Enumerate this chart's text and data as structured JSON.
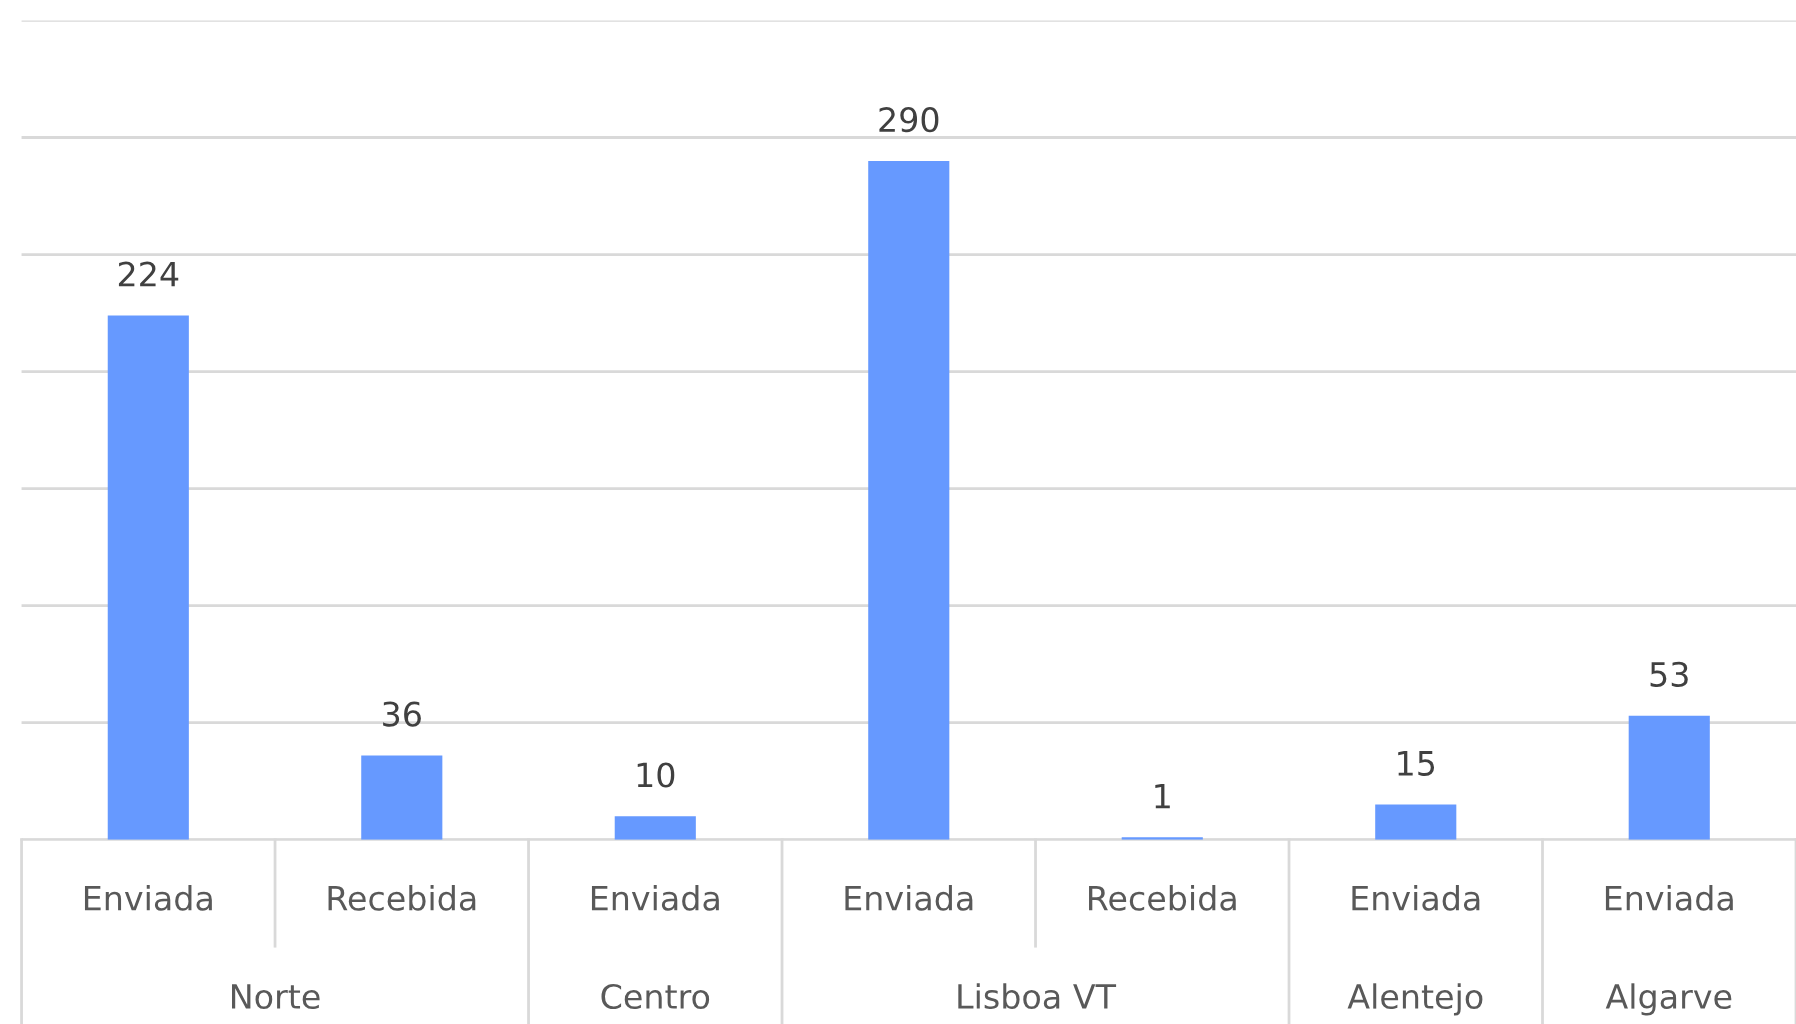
{
  "chart_data": {
    "type": "bar",
    "categories": [
      "Enviada",
      "Recebida",
      "Enviada",
      "Enviada",
      "Recebida",
      "Enviada",
      "Enviada"
    ],
    "values": [
      224,
      36,
      10,
      290,
      1,
      15,
      53
    ],
    "color": "#6699ff",
    "ylim": [
      0,
      350
    ],
    "yticks": [
      {
        "value": 0,
        "label": null
      },
      {
        "value": 50,
        "label": null
      },
      {
        "value": 100,
        "label": null
      },
      {
        "value": 150,
        "label": null
      },
      {
        "value": 200,
        "label": null
      },
      {
        "value": 250,
        "label": null
      },
      {
        "value": 300,
        "label": null
      },
      {
        "value": 350,
        "label": null
      }
    ],
    "tick_labels": "x",
    "grid": "y",
    "data_labels": true,
    "annotations": [
      "Norte",
      "Centro",
      "Lisboa VT",
      "Alentejo",
      "Algarve"
    ]
  }
}
